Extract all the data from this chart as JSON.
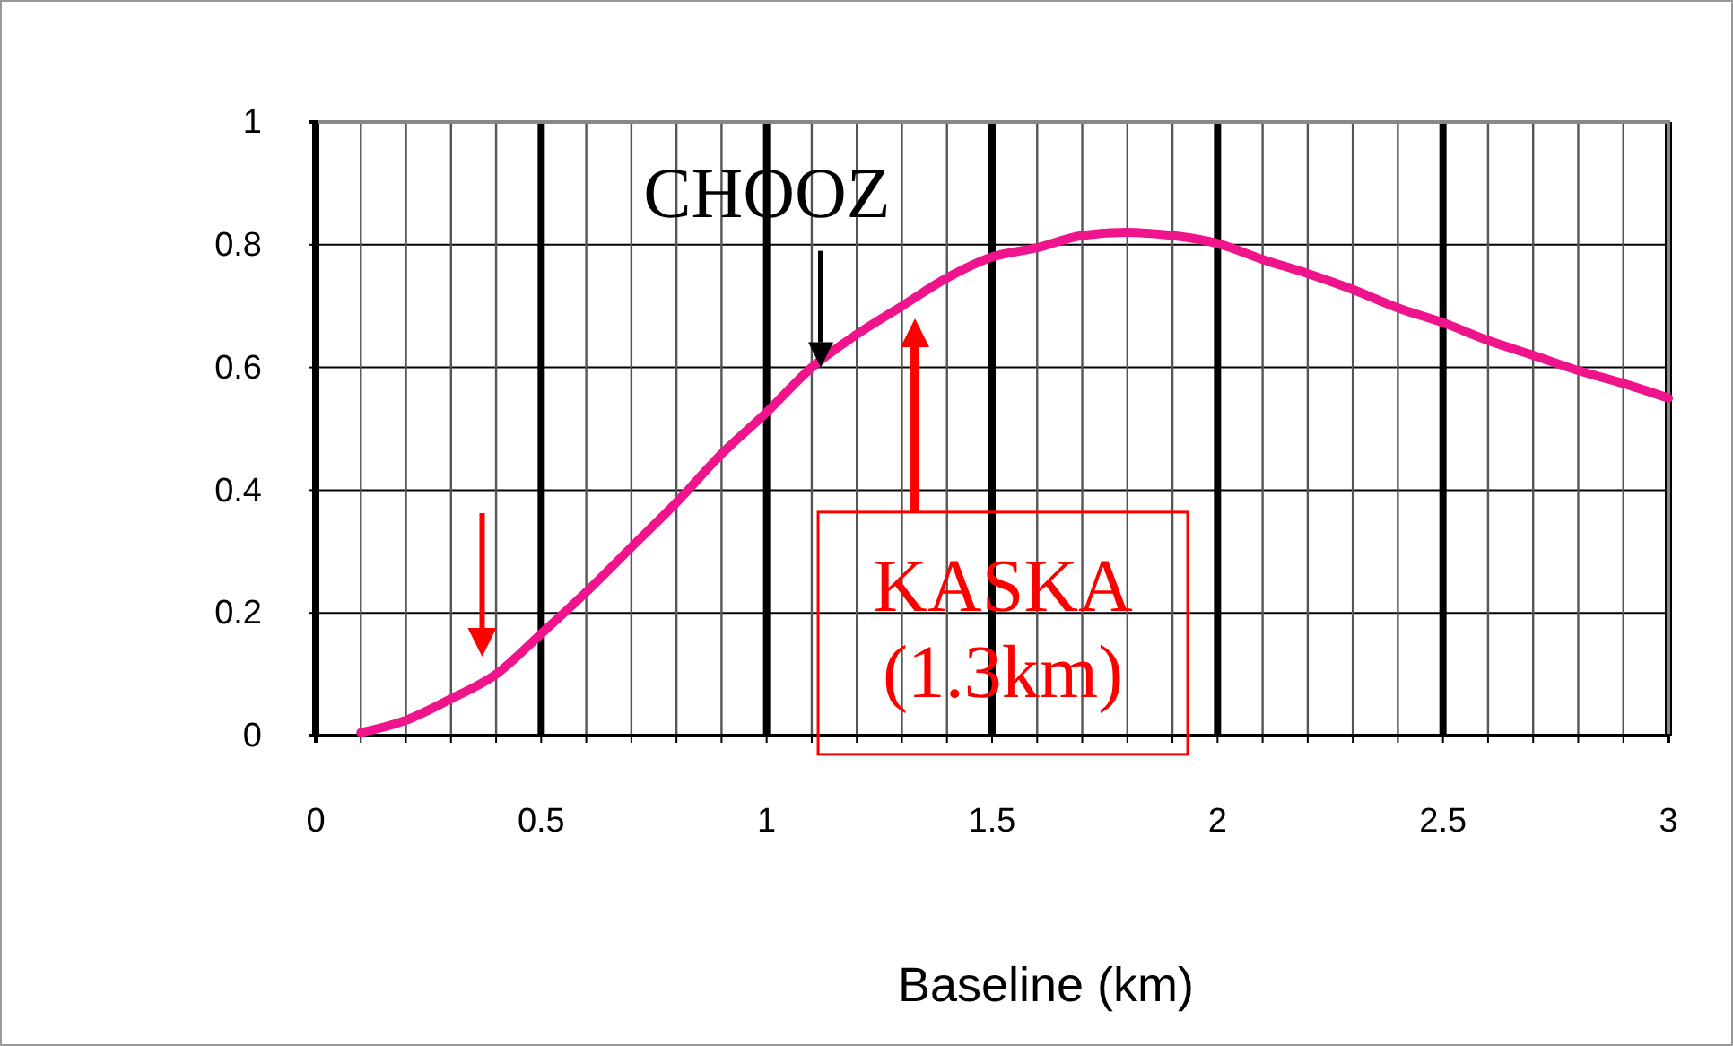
{
  "chart_data": {
    "type": "line",
    "xlabel": "Baseline (km)",
    "x": [
      0.1,
      0.2,
      0.3,
      0.4,
      0.5,
      0.6,
      0.7,
      0.8,
      0.9,
      1.0,
      1.1,
      1.2,
      1.3,
      1.4,
      1.5,
      1.6,
      1.7,
      1.8,
      1.9,
      2.0,
      2.1,
      2.2,
      2.3,
      2.4,
      2.5,
      2.6,
      2.7,
      2.8,
      2.9,
      3.0
    ],
    "series": [
      {
        "color": "#f0148c",
        "values": [
          0.005,
          0.025,
          0.06,
          0.1,
          0.166,
          0.234,
          0.307,
          0.38,
          0.459,
          0.527,
          0.6,
          0.654,
          0.7,
          0.746,
          0.78,
          0.795,
          0.815,
          0.82,
          0.815,
          0.802,
          0.776,
          0.753,
          0.727,
          0.697,
          0.673,
          0.644,
          0.62,
          0.595,
          0.574,
          0.55
        ]
      }
    ],
    "xlim": [
      0,
      3
    ],
    "ylim": [
      0,
      1
    ],
    "xticks": [
      0,
      {
        "value": 0.1,
        "label": null
      },
      {
        "value": 0.2,
        "label": null
      },
      {
        "value": 0.3,
        "label": null
      },
      {
        "value": 0.4,
        "label": null
      },
      0.5,
      {
        "value": 0.6,
        "label": null
      },
      {
        "value": 0.7,
        "label": null
      },
      {
        "value": 0.8,
        "label": null
      },
      {
        "value": 0.9,
        "label": null
      },
      1,
      {
        "value": 1.1,
        "label": null
      },
      {
        "value": 1.2,
        "label": null
      },
      {
        "value": 1.3,
        "label": null
      },
      {
        "value": 1.4,
        "label": null
      },
      1.5,
      {
        "value": 1.6,
        "label": null
      },
      {
        "value": 1.7,
        "label": null
      },
      {
        "value": 1.8,
        "label": null
      },
      {
        "value": 1.9,
        "label": null
      },
      2,
      {
        "value": 2.1,
        "label": null
      },
      {
        "value": 2.2,
        "label": null
      },
      {
        "value": 2.3,
        "label": null
      },
      {
        "value": 2.4,
        "label": null
      },
      2.5,
      {
        "value": 2.6,
        "label": null
      },
      {
        "value": 2.7,
        "label": null
      },
      {
        "value": 2.8,
        "label": null
      },
      {
        "value": 2.9,
        "label": null
      },
      3
    ],
    "yticks": [
      0,
      0.2,
      0.4,
      0.6,
      0.8,
      1
    ],
    "grid": true,
    "marker": "none",
    "line_style": "solid",
    "annotations": [
      {
        "text": "CHOOZ",
        "x": 1.12,
        "y": 0.6
      },
      "KASKA (1.3km)"
    ]
  }
}
